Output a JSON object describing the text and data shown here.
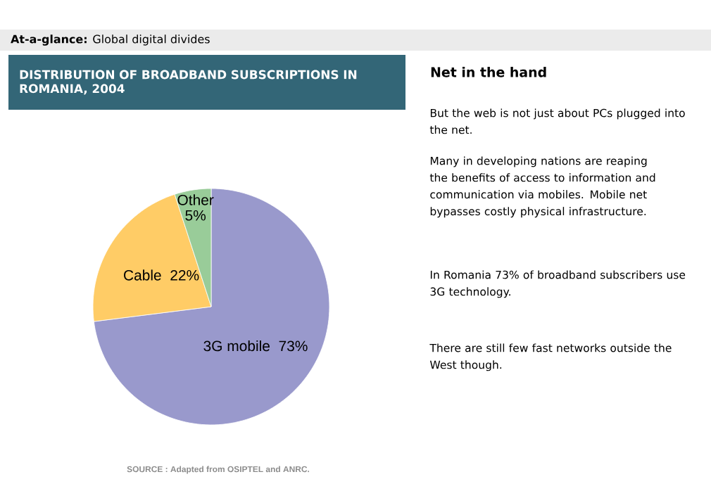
{
  "chart_data": {
    "type": "pie",
    "title": "DISTRIBUTION OF BROADBAND SUBSCRIPTIONS IN ROMANIA, 2004",
    "categories": [
      "3G mobile",
      "Cable",
      "Other"
    ],
    "values": [
      73,
      22,
      5
    ],
    "colors": [
      "#9999cc",
      "#ffcc66",
      "#99cc99"
    ],
    "value_labels": [
      "73%",
      "22%",
      "5%"
    ],
    "annotations": [
      "**At-a-glance:** Global digital divides",
      "Net in the hand",
      "But the web is not just about PCs plugged into the net.",
      "Many in developing nations are reaping the benefits of access to information and communication via mobiles. Mobile net bypasses costly physical infrastructure.",
      "In Romania 73% of broadband subscribers use 3G technology.",
      "There are still few fast networks outside the West though.",
      "SOURCE : Adapted from OSIPTEL and ANRC."
    ]
  }
}
